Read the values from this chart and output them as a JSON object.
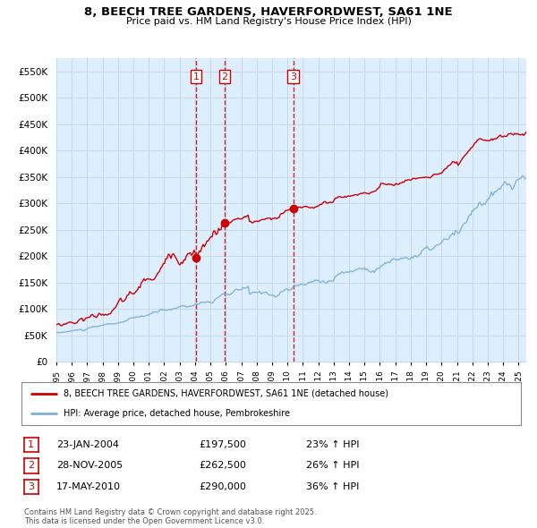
{
  "title": "8, BEECH TREE GARDENS, HAVERFORDWEST, SA61 1NE",
  "subtitle": "Price paid vs. HM Land Registry's House Price Index (HPI)",
  "ylim": [
    0,
    575000
  ],
  "yticks": [
    0,
    50000,
    100000,
    150000,
    200000,
    250000,
    300000,
    350000,
    400000,
    450000,
    500000,
    550000
  ],
  "ytick_labels": [
    "£0",
    "£50K",
    "£100K",
    "£150K",
    "£200K",
    "£250K",
    "£300K",
    "£350K",
    "£400K",
    "£450K",
    "£500K",
    "£550K"
  ],
  "xlim_start": 1995.0,
  "xlim_end": 2025.5,
  "sale_dates": [
    2004.07,
    2005.92,
    2010.38
  ],
  "sale_prices": [
    197500,
    262500,
    290000
  ],
  "sale_labels": [
    "1",
    "2",
    "3"
  ],
  "red_line_color": "#cc0000",
  "blue_line_color": "#7bafd4",
  "dashed_line_color": "#cc0000",
  "grid_color": "#c8d8e8",
  "bg_color": "#ffffff",
  "chart_bg_color": "#ddeeff",
  "legend_label_red": "8, BEECH TREE GARDENS, HAVERFORDWEST, SA61 1NE (detached house)",
  "legend_label_blue": "HPI: Average price, detached house, Pembrokeshire",
  "table_data": [
    [
      "1",
      "23-JAN-2004",
      "£197,500",
      "23% ↑ HPI"
    ],
    [
      "2",
      "28-NOV-2005",
      "£262,500",
      "26% ↑ HPI"
    ],
    [
      "3",
      "17-MAY-2010",
      "£290,000",
      "36% ↑ HPI"
    ]
  ],
  "footnote": "Contains HM Land Registry data © Crown copyright and database right 2025.\nThis data is licensed under the Open Government Licence v3.0."
}
